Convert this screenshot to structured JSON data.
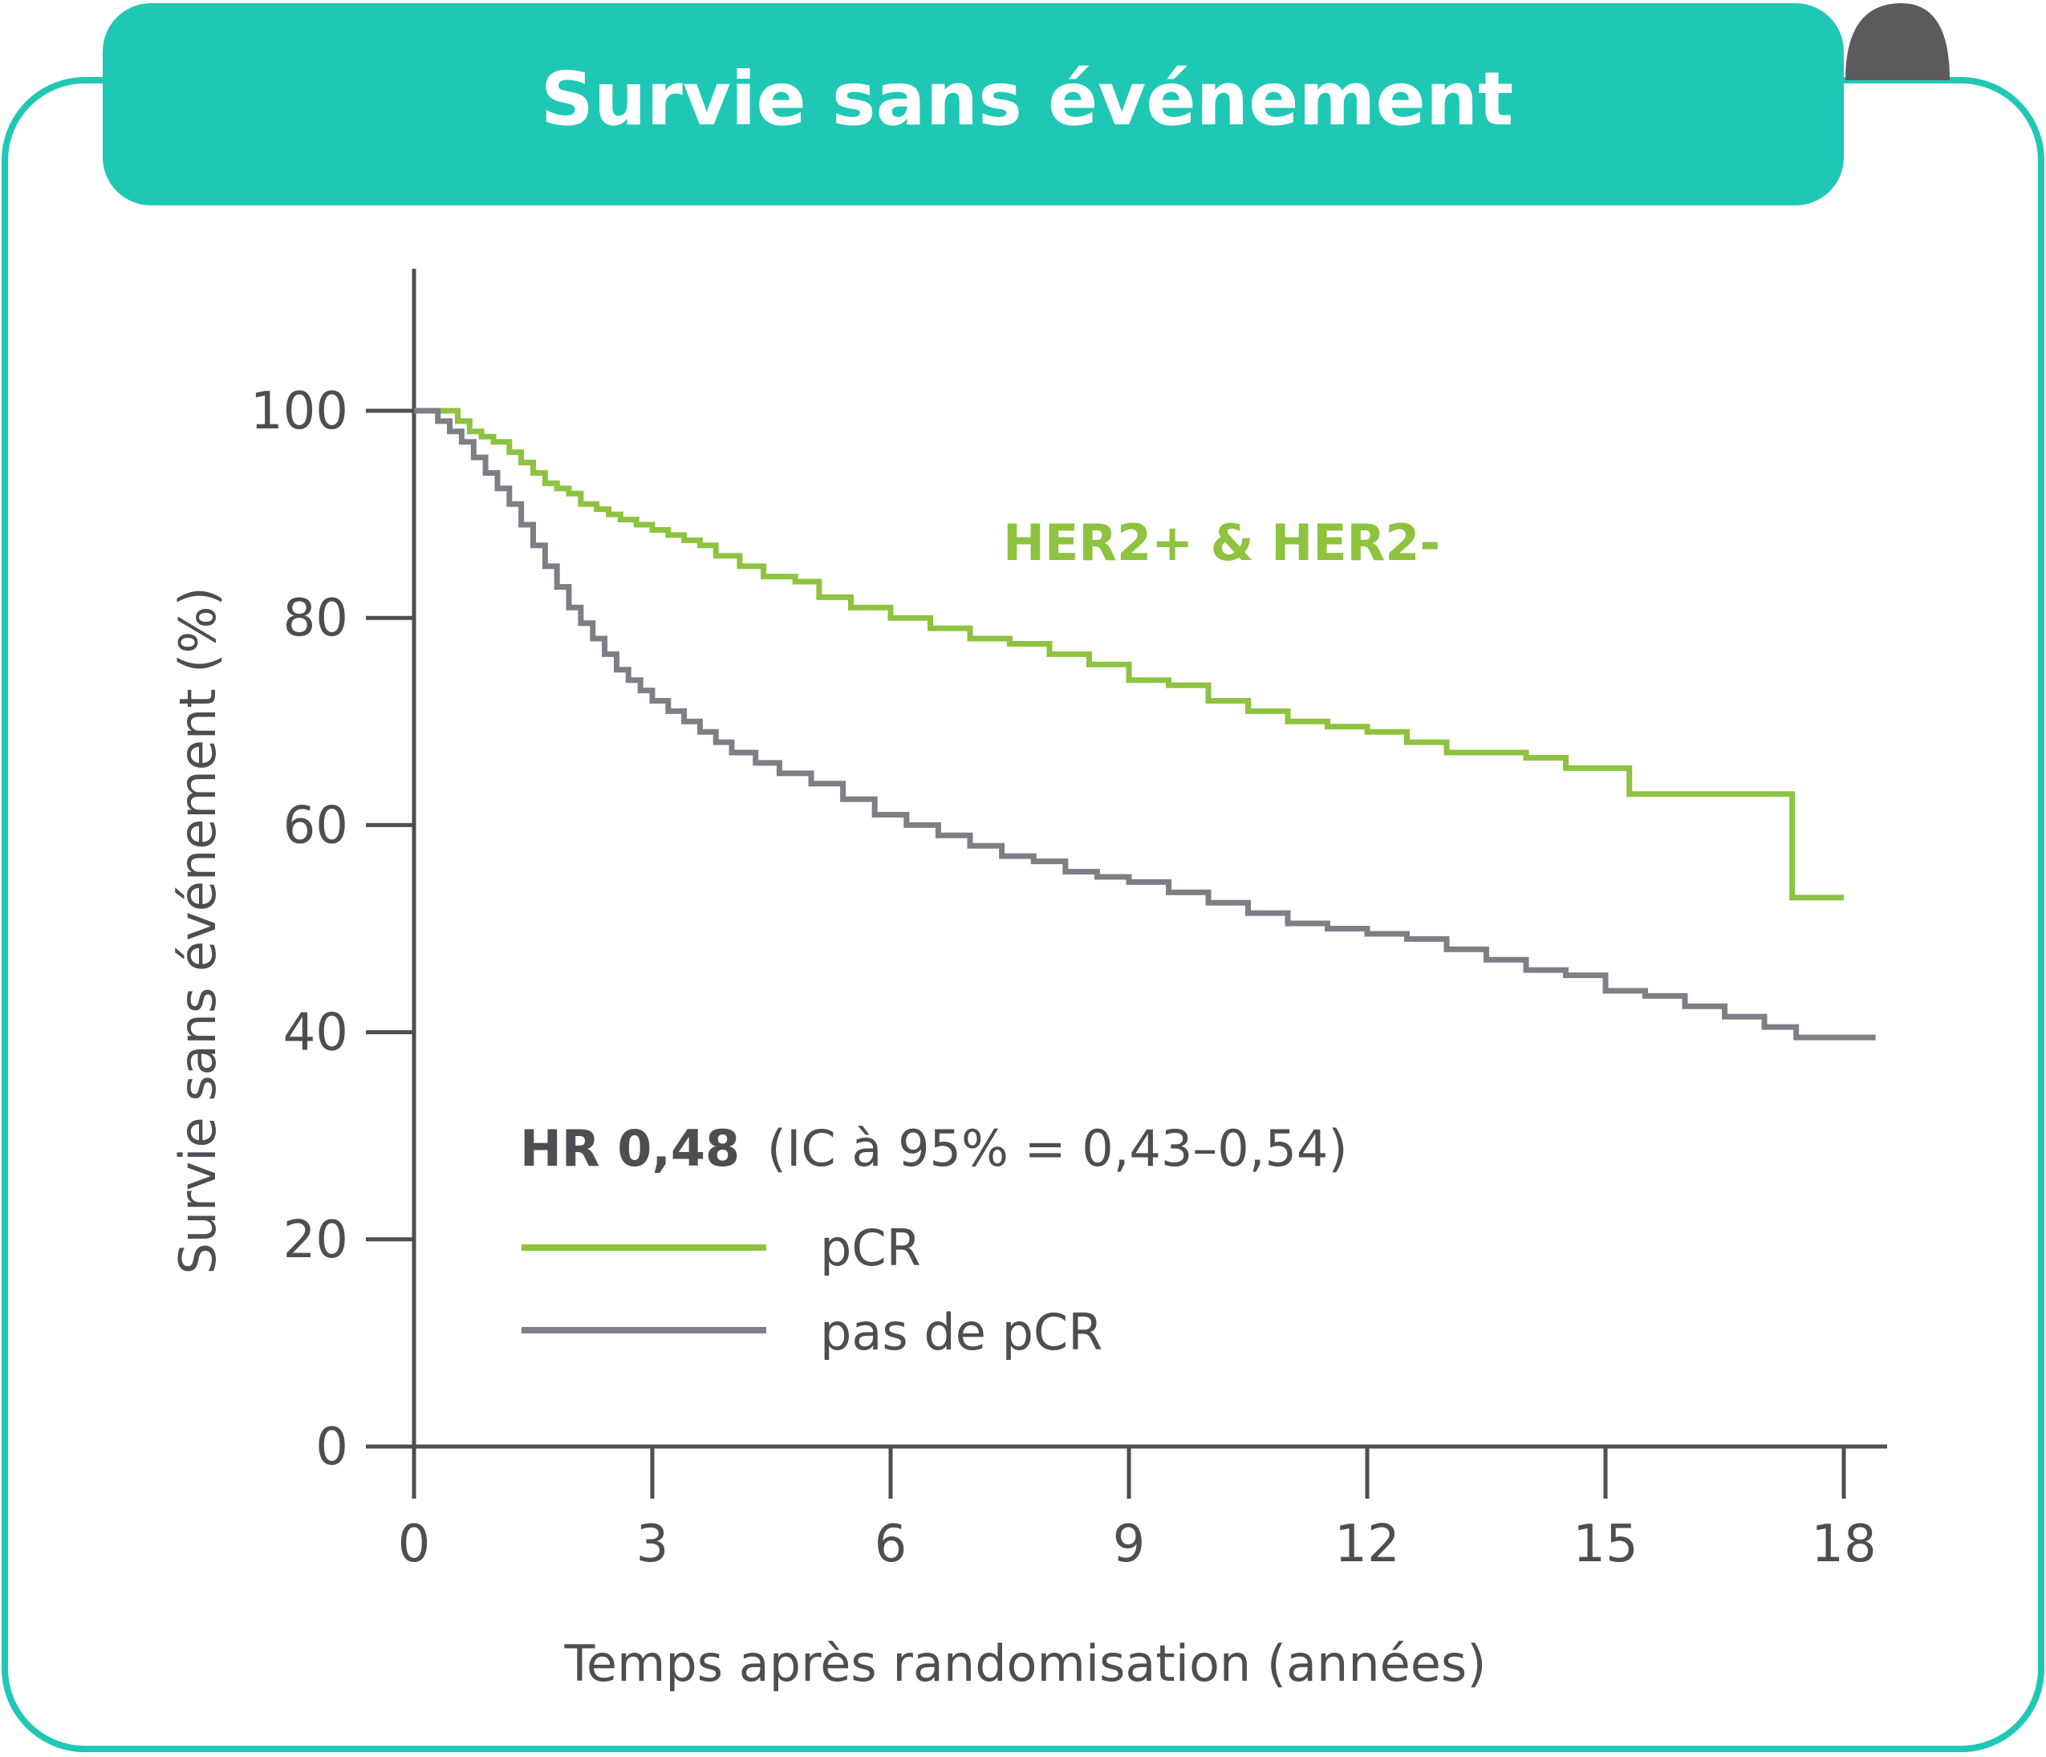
{
  "header": {
    "title": "Survie sans événement"
  },
  "colors": {
    "teal": "#1FC8B4",
    "green": "#8DC33F",
    "grey": "#7C7F85",
    "dark": "#4D4E52",
    "fold": "#5B5B5D"
  },
  "chart_data": {
    "type": "line",
    "title": "Survie sans événement",
    "xlabel": "Temps après randomisation (années)",
    "ylabel": "Survie sans événement (%)",
    "xlim": [
      0,
      18.5
    ],
    "ylim": [
      0,
      110
    ],
    "xticks": [
      "0",
      "3",
      "6",
      "9",
      "12",
      "15",
      "18"
    ],
    "yticks": [
      "0",
      "20",
      "40",
      "60",
      "80",
      "100"
    ],
    "grid": false,
    "legend_position": "bottom-left",
    "annotation": "HER2+ & HER2-",
    "stats": {
      "hr": "HR 0,48",
      "ci": "(IC à 95% = 0,43–0,54)"
    },
    "series": [
      {
        "name": "pCR",
        "color": "#8DC33F",
        "x": [
          0,
          0.55,
          0.7,
          0.85,
          1.0,
          1.2,
          1.35,
          1.5,
          1.65,
          1.8,
          1.95,
          2.1,
          2.3,
          2.45,
          2.6,
          2.8,
          3.0,
          3.2,
          3.4,
          3.6,
          3.8,
          4.1,
          4.4,
          4.8,
          5.1,
          5.5,
          6.0,
          6.5,
          7.0,
          7.5,
          8.0,
          8.5,
          9.0,
          9.5,
          10.0,
          10.5,
          11.0,
          11.5,
          12.0,
          12.5,
          13.0,
          13.5,
          14.0,
          14.5,
          15.0,
          15.3,
          16.0,
          16.5,
          17.0,
          17.35,
          17.6,
          18.0
        ],
        "y": [
          100,
          99,
          98,
          97.5,
          97,
          96,
          95,
          94,
          93,
          92.5,
          92,
          91,
          90.5,
          90,
          89.5,
          89,
          88.5,
          88,
          87.5,
          87,
          86,
          85,
          84,
          83.5,
          82,
          81,
          80,
          79,
          78,
          77.5,
          76.5,
          75.5,
          74,
          73.5,
          72,
          71,
          70,
          69.5,
          69,
          68,
          67,
          67,
          66.5,
          65.5,
          65.5,
          63,
          63,
          63,
          63,
          53,
          53,
          53
        ]
      },
      {
        "name": "pas de pCR",
        "color": "#7C7F85",
        "x": [
          0,
          0.3,
          0.45,
          0.6,
          0.75,
          0.9,
          1.05,
          1.2,
          1.35,
          1.5,
          1.65,
          1.8,
          1.95,
          2.1,
          2.25,
          2.4,
          2.55,
          2.7,
          2.85,
          3.0,
          3.2,
          3.4,
          3.6,
          3.8,
          4.0,
          4.3,
          4.6,
          5.0,
          5.4,
          5.8,
          6.2,
          6.6,
          7.0,
          7.4,
          7.8,
          8.2,
          8.6,
          9.0,
          9.5,
          10.0,
          10.5,
          11.0,
          11.5,
          12.0,
          12.5,
          13.0,
          13.5,
          14.0,
          14.5,
          15.0,
          15.5,
          16.0,
          16.5,
          17.0,
          17.4,
          18.0,
          18.4
        ],
        "y": [
          100,
          99,
          98,
          97,
          95.5,
          94,
          92.5,
          91,
          89,
          87,
          85,
          83,
          81,
          79.5,
          78,
          76.5,
          75,
          74,
          73,
          72,
          71,
          70,
          69,
          68,
          67,
          66,
          65,
          64,
          62.5,
          61,
          60,
          59,
          58,
          57,
          56.5,
          55.5,
          55,
          54.5,
          53.5,
          52.5,
          51.5,
          50.5,
          50,
          49.5,
          49,
          48,
          47,
          46,
          45.5,
          44,
          43.5,
          42.5,
          41.5,
          40.5,
          39.5,
          39.5,
          39.5
        ]
      }
    ]
  }
}
